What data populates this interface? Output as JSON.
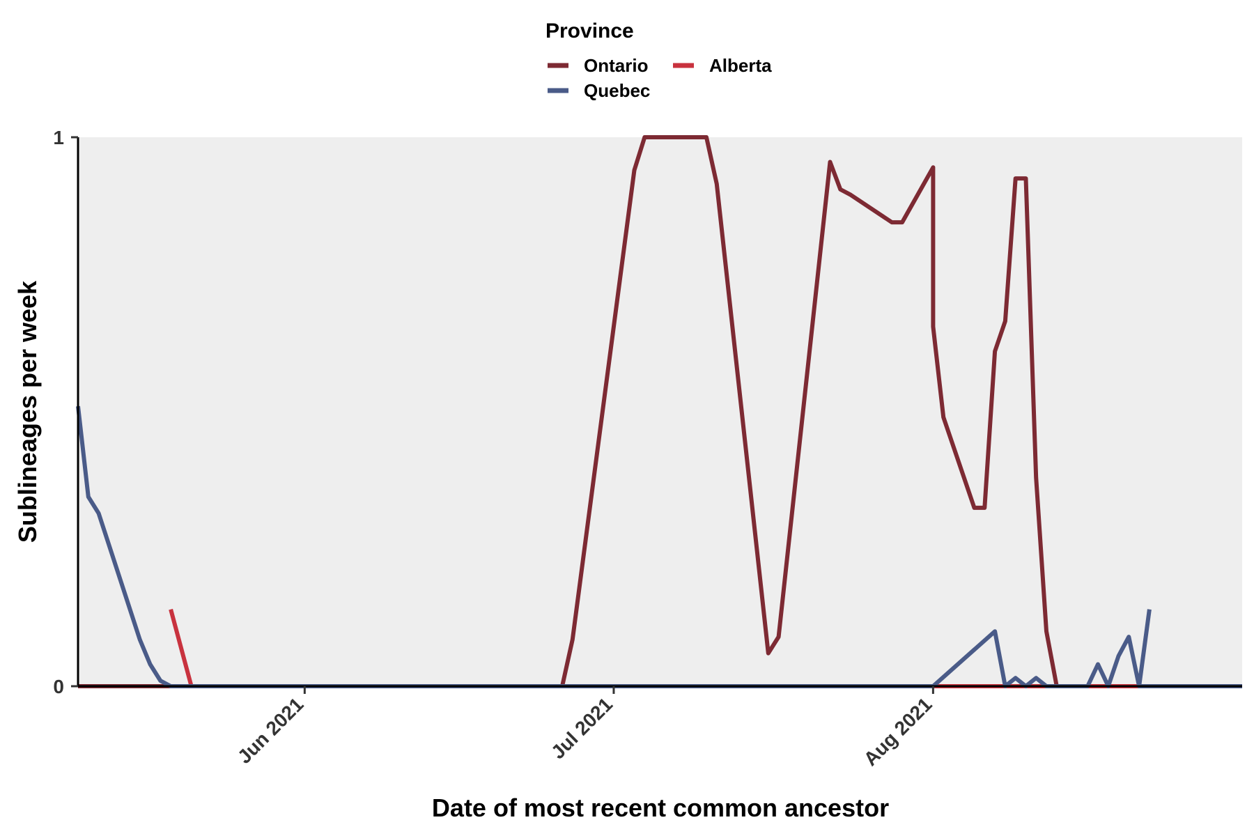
{
  "chart_data": {
    "type": "line",
    "title": "",
    "xlabel": "Date of most recent common ancestor",
    "ylabel": "Sublineages per week",
    "x_range": [
      "2021-05-10",
      "2021-08-31"
    ],
    "ylim": [
      0,
      1
    ],
    "y_ticks": [
      0,
      1
    ],
    "x_ticks": [
      {
        "date": "2021-06-01",
        "label": "Jun 2021"
      },
      {
        "date": "2021-07-01",
        "label": "Jul 2021"
      },
      {
        "date": "2021-08-01",
        "label": "Aug 2021"
      }
    ],
    "panel_background": "#eeeeee",
    "grid": false,
    "legend": {
      "title": "Province",
      "position": "top",
      "entries": [
        {
          "label": "Ontario",
          "color": "#7d2a33"
        },
        {
          "label": "Alberta",
          "color": "#c8323e"
        },
        {
          "label": "Quebec",
          "color": "#4a5b88"
        }
      ]
    },
    "series": [
      {
        "name": "Ontario",
        "color": "#7d2a33",
        "x": [
          "2021-05-10",
          "2021-06-26",
          "2021-06-27",
          "2021-07-03",
          "2021-07-04",
          "2021-07-10",
          "2021-07-11",
          "2021-07-16",
          "2021-07-17",
          "2021-07-22",
          "2021-07-23",
          "2021-07-24",
          "2021-07-28",
          "2021-07-29",
          "2021-08-01",
          "2021-08-01",
          "2021-08-02",
          "2021-08-05",
          "2021-08-06",
          "2021-08-07",
          "2021-08-08",
          "2021-08-09",
          "2021-08-10",
          "2021-08-11",
          "2021-08-12",
          "2021-08-13",
          "2021-08-14",
          "2021-08-18",
          "2021-08-19",
          "2021-08-20",
          "2021-08-31"
        ],
        "y": [
          0,
          0,
          0.085,
          0.94,
          1,
          1,
          0.915,
          0.06,
          0.09,
          0.955,
          0.905,
          0.895,
          0.845,
          0.845,
          0.945,
          0.655,
          0.49,
          0.325,
          0.325,
          0.61,
          0.665,
          0.925,
          0.925,
          0.38,
          0.1,
          0,
          0,
          0,
          0,
          0,
          0
        ]
      },
      {
        "name": "Alberta",
        "color": "#c8323e",
        "x": [
          "2021-05-19",
          "2021-05-21",
          "2021-08-31"
        ],
        "y": [
          0.14,
          0,
          0
        ]
      },
      {
        "name": "Quebec",
        "color": "#4a5b88",
        "x": [
          "2021-05-10",
          "2021-05-11",
          "2021-05-12",
          "2021-05-16",
          "2021-05-17",
          "2021-05-18",
          "2021-05-19",
          "2021-08-01",
          "2021-08-07",
          "2021-08-08",
          "2021-08-09",
          "2021-08-10",
          "2021-08-11",
          "2021-08-12",
          "2021-08-16",
          "2021-08-17",
          "2021-08-18",
          "2021-08-19",
          "2021-08-20",
          "2021-08-21",
          "2021-08-22",
          "2021-08-31"
        ],
        "y": [
          0.51,
          0.345,
          0.315,
          0.085,
          0.04,
          0.01,
          0,
          0,
          0.1,
          0,
          0.015,
          0,
          0.015,
          0,
          0,
          0.04,
          0,
          0.055,
          0.09,
          0,
          0,
          0
        ]
      }
    ],
    "extra_segment": {
      "series": "Quebec",
      "x": [
        "2021-08-21",
        "2021-08-22"
      ],
      "y": [
        0,
        0.14
      ]
    }
  }
}
